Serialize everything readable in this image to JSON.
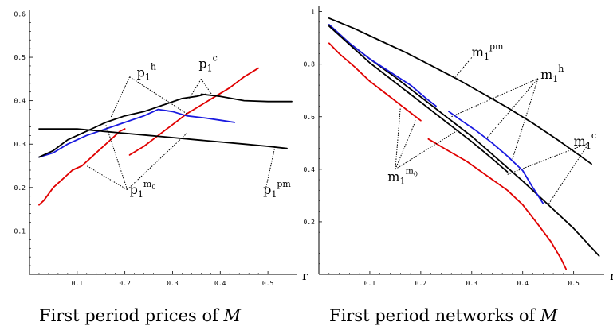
{
  "chart_data": [
    {
      "type": "line",
      "caption": "First period prices of M",
      "caption_text": "First period prices of ",
      "caption_var": "M",
      "xlabel": "r",
      "ylabel": "",
      "xlim": [
        0,
        0.56
      ],
      "ylim": [
        0,
        0.61
      ],
      "xticks": [
        "0.1",
        "0.2",
        "0.3",
        "0.4",
        "0.5"
      ],
      "yticks": [
        "0.1",
        "0.2",
        "0.3",
        "0.4",
        "0.5",
        "0.6"
      ],
      "series": [
        {
          "color": "#e00000",
          "points": [
            [
              0.02,
              0.16
            ],
            [
              0.03,
              0.17
            ],
            [
              0.05,
              0.2
            ],
            [
              0.07,
              0.22
            ],
            [
              0.09,
              0.24
            ],
            [
              0.11,
              0.25
            ],
            [
              0.13,
              0.27
            ],
            [
              0.15,
              0.29
            ],
            [
              0.17,
              0.31
            ],
            [
              0.19,
              0.33
            ],
            [
              0.2,
              0.335
            ]
          ]
        },
        {
          "color": "#e00000",
          "points": [
            [
              0.21,
              0.275
            ],
            [
              0.24,
              0.295
            ],
            [
              0.27,
              0.32
            ],
            [
              0.3,
              0.345
            ],
            [
              0.33,
              0.37
            ],
            [
              0.36,
              0.39
            ],
            [
              0.39,
              0.41
            ],
            [
              0.42,
              0.43
            ],
            [
              0.45,
              0.455
            ],
            [
              0.48,
              0.475
            ]
          ]
        },
        {
          "color": "#1a1ae0",
          "points": [
            [
              0.02,
              0.27
            ],
            [
              0.05,
              0.28
            ],
            [
              0.08,
              0.3
            ],
            [
              0.12,
              0.32
            ],
            [
              0.16,
              0.335
            ],
            [
              0.2,
              0.35
            ],
            [
              0.24,
              0.365
            ],
            [
              0.27,
              0.38
            ],
            [
              0.3,
              0.375
            ],
            [
              0.33,
              0.365
            ],
            [
              0.37,
              0.36
            ],
            [
              0.4,
              0.355
            ],
            [
              0.43,
              0.35
            ]
          ]
        },
        {
          "color": "#000000",
          "points": [
            [
              0.02,
              0.27
            ],
            [
              0.05,
              0.285
            ],
            [
              0.08,
              0.31
            ],
            [
              0.12,
              0.33
            ],
            [
              0.16,
              0.35
            ],
            [
              0.2,
              0.365
            ],
            [
              0.24,
              0.375
            ],
            [
              0.28,
              0.39
            ],
            [
              0.32,
              0.405
            ],
            [
              0.35,
              0.41
            ],
            [
              0.37,
              0.415
            ]
          ]
        },
        {
          "color": "#000000",
          "points": [
            [
              0.36,
              0.415
            ],
            [
              0.4,
              0.41
            ],
            [
              0.45,
              0.4
            ],
            [
              0.5,
              0.398
            ],
            [
              0.55,
              0.398
            ]
          ]
        },
        {
          "color": "#000000",
          "points": [
            [
              0.02,
              0.335
            ],
            [
              0.05,
              0.335
            ],
            [
              0.1,
              0.335
            ],
            [
              0.15,
              0.33
            ],
            [
              0.2,
              0.325
            ],
            [
              0.25,
              0.32
            ],
            [
              0.3,
              0.315
            ],
            [
              0.35,
              0.31
            ],
            [
              0.4,
              0.305
            ],
            [
              0.45,
              0.3
            ],
            [
              0.5,
              0.295
            ],
            [
              0.54,
              0.29
            ]
          ]
        }
      ],
      "annotations": [
        {
          "base": "p",
          "sub": "1",
          "sup": "h",
          "sup_sub": "",
          "label_at": [
            0.225,
            0.455
          ],
          "pointers": [
            [
              0.21,
              0.455,
              0.17,
              0.36
            ],
            [
              0.21,
              0.455,
              0.33,
              0.37
            ]
          ]
        },
        {
          "base": "p",
          "sub": "1",
          "sup": "c",
          "sup_sub": "",
          "label_at": [
            0.355,
            0.475
          ],
          "pointers": [
            [
              0.36,
              0.45,
              0.335,
              0.405
            ],
            [
              0.36,
              0.45,
              0.385,
              0.41
            ]
          ]
        },
        {
          "base": "p",
          "sub": "1",
          "sup": "m",
          "sup_sub": "0",
          "label_at": [
            0.21,
            0.185
          ],
          "pointers": [
            [
              0.205,
              0.195,
              0.12,
              0.25
            ],
            [
              0.205,
              0.195,
              0.16,
              0.345
            ],
            [
              0.205,
              0.195,
              0.33,
              0.325
            ]
          ]
        },
        {
          "base": "p",
          "sub": "1",
          "sup": "pm",
          "sup_sub": "",
          "label_at": [
            0.49,
            0.185
          ],
          "pointers": [
            [
              0.495,
              0.195,
              0.515,
              0.295
            ]
          ]
        }
      ]
    },
    {
      "type": "line",
      "caption": "First period networks of M",
      "caption_text": "First period networks of ",
      "caption_var": "M",
      "xlabel": "r",
      "ylabel": "",
      "xlim": [
        0,
        0.56
      ],
      "ylim": [
        0,
        1.02
      ],
      "xticks": [
        "0.1",
        "0.2",
        "0.3",
        "0.4",
        "0.5"
      ],
      "yticks": [
        "0.2",
        "0.4",
        "0.6",
        "0.8",
        "1"
      ],
      "series": [
        {
          "color": "#000000",
          "points": [
            [
              0.02,
              0.975
            ],
            [
              0.07,
              0.935
            ],
            [
              0.12,
              0.89
            ],
            [
              0.17,
              0.845
            ],
            [
              0.22,
              0.795
            ],
            [
              0.27,
              0.745
            ],
            [
              0.32,
              0.69
            ],
            [
              0.37,
              0.635
            ],
            [
              0.42,
              0.575
            ],
            [
              0.47,
              0.51
            ],
            [
              0.51,
              0.455
            ],
            [
              0.535,
              0.42
            ]
          ]
        },
        {
          "color": "#000000",
          "points": [
            [
              0.02,
              0.95
            ],
            [
              0.06,
              0.88
            ],
            [
              0.1,
              0.82
            ],
            [
              0.15,
              0.75
            ],
            [
              0.2,
              0.675
            ],
            [
              0.25,
              0.6
            ],
            [
              0.3,
              0.525
            ],
            [
              0.35,
              0.44
            ],
            [
              0.4,
              0.355
            ],
            [
              0.45,
              0.265
            ],
            [
              0.5,
              0.175
            ],
            [
              0.55,
              0.07
            ]
          ]
        },
        {
          "color": "#1a1ae0",
          "points": [
            [
              0.02,
              0.95
            ],
            [
              0.06,
              0.88
            ],
            [
              0.1,
              0.82
            ],
            [
              0.14,
              0.77
            ],
            [
              0.18,
              0.72
            ],
            [
              0.21,
              0.67
            ],
            [
              0.23,
              0.64
            ]
          ]
        },
        {
          "color": "#1a1ae0",
          "points": [
            [
              0.255,
              0.62
            ],
            [
              0.28,
              0.585
            ],
            [
              0.31,
              0.545
            ],
            [
              0.34,
              0.5
            ],
            [
              0.37,
              0.45
            ],
            [
              0.4,
              0.395
            ],
            [
              0.42,
              0.33
            ],
            [
              0.44,
              0.27
            ]
          ]
        },
        {
          "color": "#000000",
          "points": [
            [
              0.02,
              0.945
            ],
            [
              0.06,
              0.875
            ],
            [
              0.1,
              0.805
            ],
            [
              0.15,
              0.73
            ],
            [
              0.2,
              0.655
            ],
            [
              0.25,
              0.58
            ],
            [
              0.3,
              0.505
            ],
            [
              0.34,
              0.44
            ],
            [
              0.37,
              0.39
            ]
          ]
        },
        {
          "color": "#e00000",
          "points": [
            [
              0.02,
              0.88
            ],
            [
              0.04,
              0.84
            ],
            [
              0.07,
              0.79
            ],
            [
              0.1,
              0.735
            ],
            [
              0.13,
              0.69
            ],
            [
              0.16,
              0.645
            ],
            [
              0.2,
              0.585
            ]
          ]
        },
        {
          "color": "#e00000",
          "points": [
            [
              0.215,
              0.515
            ],
            [
              0.25,
              0.475
            ],
            [
              0.29,
              0.43
            ],
            [
              0.33,
              0.375
            ],
            [
              0.37,
              0.32
            ],
            [
              0.4,
              0.265
            ],
            [
              0.43,
              0.19
            ],
            [
              0.455,
              0.125
            ],
            [
              0.475,
              0.06
            ],
            [
              0.485,
              0.02
            ]
          ]
        }
      ],
      "annotations": [
        {
          "base": "m",
          "sub": "1",
          "sup": "pm",
          "sup_sub": "",
          "label_at": [
            0.3,
            0.83
          ],
          "pointers": [
            [
              0.3,
              0.825,
              0.265,
              0.745
            ]
          ]
        },
        {
          "base": "m",
          "sub": "1",
          "sup": "h",
          "sup_sub": "",
          "label_at": [
            0.435,
            0.745
          ],
          "pointers": [
            [
              0.43,
              0.745,
              0.26,
              0.6
            ],
            [
              0.43,
              0.745,
              0.33,
              0.52
            ],
            [
              0.43,
              0.745,
              0.38,
              0.44
            ]
          ]
        },
        {
          "base": "m",
          "sub": "1",
          "sup": "c",
          "sup_sub": "",
          "label_at": [
            0.5,
            0.49
          ],
          "pointers": [
            [
              0.53,
              0.5,
              0.45,
              0.265
            ],
            [
              0.53,
              0.5,
              0.37,
              0.38
            ]
          ]
        },
        {
          "base": "m",
          "sub": "1",
          "sup": "m",
          "sup_sub": "0",
          "label_at": [
            0.135,
            0.355
          ],
          "pointers": [
            [
              0.15,
              0.4,
              0.16,
              0.635
            ],
            [
              0.15,
              0.4,
              0.19,
              0.585
            ],
            [
              0.15,
              0.4,
              0.27,
              0.545
            ]
          ]
        }
      ]
    }
  ]
}
